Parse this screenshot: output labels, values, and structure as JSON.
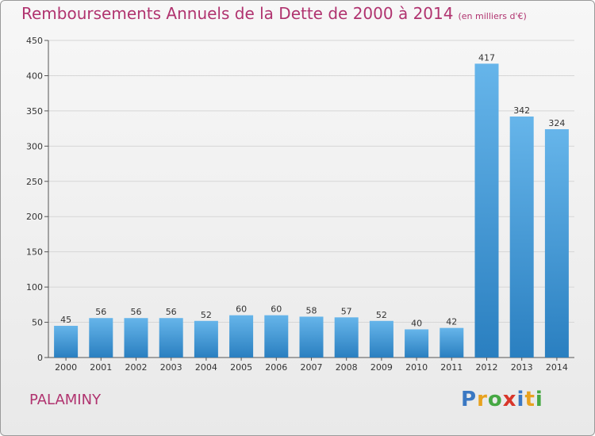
{
  "header": {
    "title": "Remboursements Annuels de la Dette de 2000 à 2014",
    "unit": "(en milliers d'€)"
  },
  "commune": "PALAMINY",
  "logo": {
    "text": "Proxiti",
    "letters": [
      {
        "char": "P",
        "color": "#3a78c3"
      },
      {
        "char": "r",
        "color": "#e8a21f"
      },
      {
        "char": "o",
        "color": "#46a843"
      },
      {
        "char": "x",
        "color": "#d8362a"
      },
      {
        "char": "i",
        "color": "#3a78c3"
      },
      {
        "char": "t",
        "color": "#e8a21f"
      },
      {
        "char": "i",
        "color": "#46a843"
      }
    ]
  },
  "chart_data": {
    "type": "bar",
    "title": "Remboursements Annuels de la Dette de 2000 à 2014",
    "subtitle": "(en milliers d'€)",
    "categories": [
      "2000",
      "2001",
      "2002",
      "2003",
      "2004",
      "2005",
      "2006",
      "2007",
      "2008",
      "2009",
      "2010",
      "2011",
      "2012",
      "2013",
      "2014"
    ],
    "values": [
      45,
      56,
      56,
      56,
      52,
      60,
      60,
      58,
      57,
      52,
      40,
      42,
      417,
      342,
      324
    ],
    "ylim": [
      0,
      450
    ],
    "yticks": [
      0,
      50,
      100,
      150,
      200,
      250,
      300,
      350,
      400,
      450
    ],
    "grid": true,
    "bar_color_light": "#66b5ea",
    "bar_color_dark": "#2a7fc0",
    "title_color": "#b0336f"
  }
}
